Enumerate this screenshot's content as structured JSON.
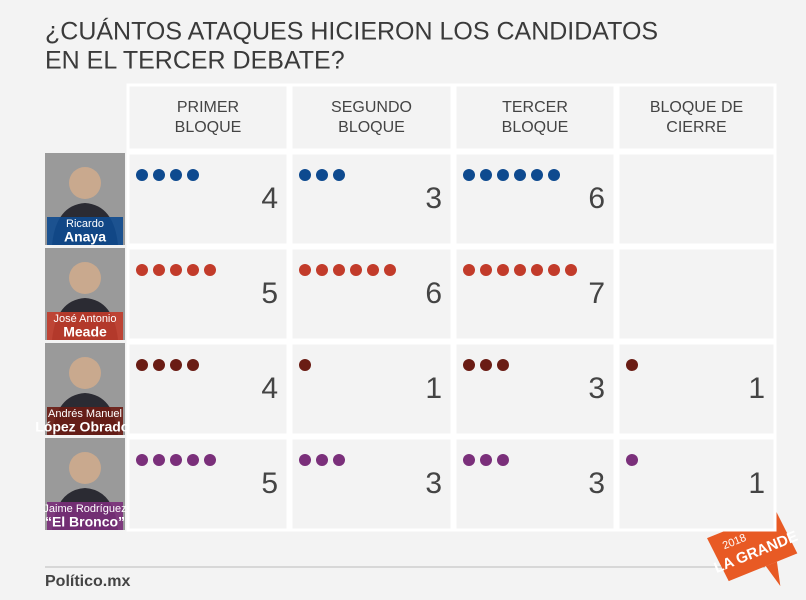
{
  "title": [
    "¿CUÁNTOS ATAQUES HICIERON LOS CANDIDATOS",
    "EN EL TERCER DEBATE?"
  ],
  "columns": [
    [
      "PRIMER",
      "BLOQUE"
    ],
    [
      "SEGUNDO",
      "BLOQUE"
    ],
    [
      "TERCER",
      "BLOQUE"
    ],
    [
      "BLOQUE DE",
      "CIERRE"
    ]
  ],
  "rows": [
    {
      "name": [
        "Ricardo",
        "Anaya"
      ],
      "color": "#0e4a8f",
      "values": [
        4,
        3,
        6,
        null
      ]
    },
    {
      "name": [
        "José Antonio",
        "Meade"
      ],
      "color": "#c23b2a",
      "values": [
        5,
        6,
        7,
        null
      ]
    },
    {
      "name": [
        "Andrés Manuel",
        "López Obrador"
      ],
      "color": "#6a1c14",
      "values": [
        4,
        1,
        3,
        1
      ]
    },
    {
      "name": [
        "Jaime Rodríguez",
        "“El Bronco”"
      ],
      "color": "#7a2f7a",
      "values": [
        5,
        3,
        3,
        1
      ]
    }
  ],
  "footer": {
    "logo": "Político.mx",
    "badge": [
      "2018",
      "LA GRANDE"
    ]
  }
}
